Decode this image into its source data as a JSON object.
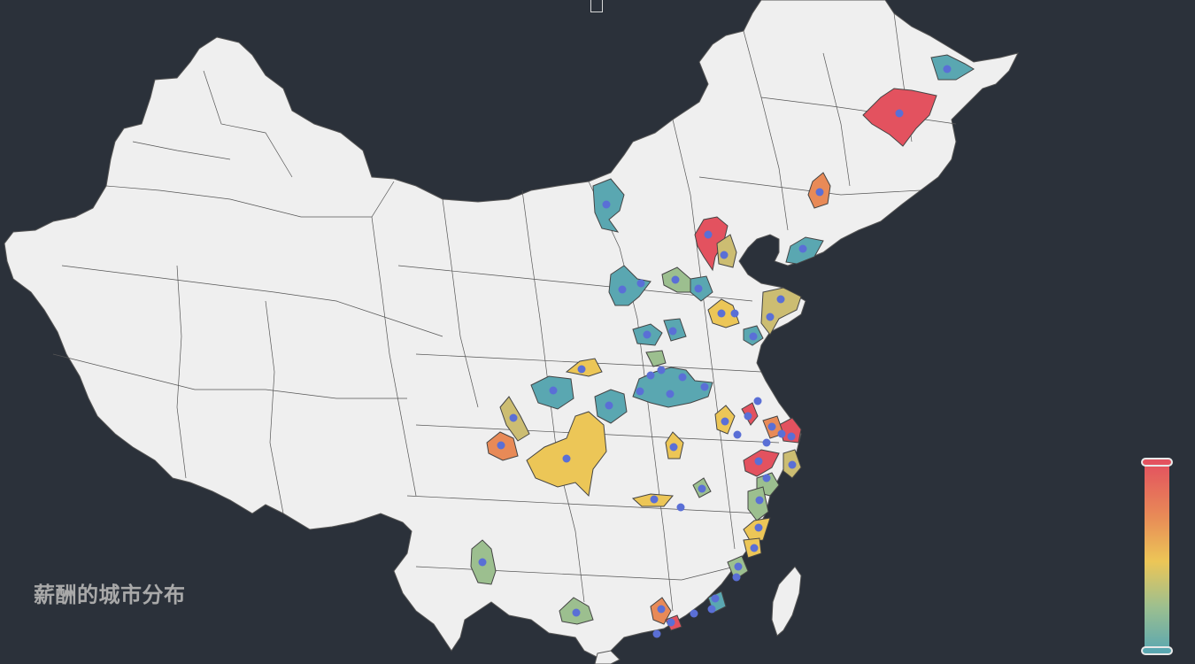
{
  "title": "薪酬的城市分布",
  "visual_map": {
    "colors": [
      "#e3525f",
      "#e88a57",
      "#ecc657",
      "#9cbf8f",
      "#5aa7b1"
    ],
    "orientation": "vertical",
    "position": "bottom-right"
  },
  "map": {
    "region": "China",
    "land_color": "#efefef",
    "border_color": "#555555",
    "background": "#2b313a",
    "marker_color": "#5a6fd6",
    "highlighted_cities": [
      {
        "id": "heilongjiang-city-a",
        "level": 5
      },
      {
        "id": "heilongjiang-city-b",
        "level": 1
      },
      {
        "id": "jilin-city",
        "level": 4
      },
      {
        "id": "beijing",
        "level": 5
      },
      {
        "id": "tianjin",
        "level": 3
      },
      {
        "id": "dalian",
        "level": 1
      },
      {
        "id": "hohhot",
        "level": 1
      },
      {
        "id": "shijiazhuang",
        "level": 2
      },
      {
        "id": "taiyuan",
        "level": 1
      },
      {
        "id": "jinan",
        "level": 3
      },
      {
        "id": "qingdao",
        "level": 3
      },
      {
        "id": "zhengzhou",
        "level": 1
      },
      {
        "id": "xian",
        "level": 1
      },
      {
        "id": "lanzhou",
        "level": 1
      },
      {
        "id": "chengdu",
        "level": 3
      },
      {
        "id": "chongqing",
        "level": 3
      },
      {
        "id": "ya-an",
        "level": 4
      },
      {
        "id": "wuhan",
        "level": 4
      },
      {
        "id": "hefei",
        "level": 3
      },
      {
        "id": "nanjing",
        "level": 1
      },
      {
        "id": "shanghai",
        "level": 5
      },
      {
        "id": "hangzhou",
        "level": 5
      },
      {
        "id": "ningbo",
        "level": 3
      },
      {
        "id": "changsha",
        "level": 3
      },
      {
        "id": "nanchang",
        "level": 2
      },
      {
        "id": "fuzhou",
        "level": 3
      },
      {
        "id": "xiamen",
        "level": 2
      },
      {
        "id": "guangzhou",
        "level": 4
      },
      {
        "id": "shenzhen",
        "level": 5
      },
      {
        "id": "kunming",
        "level": 2
      },
      {
        "id": "nanning",
        "level": 2
      }
    ]
  }
}
